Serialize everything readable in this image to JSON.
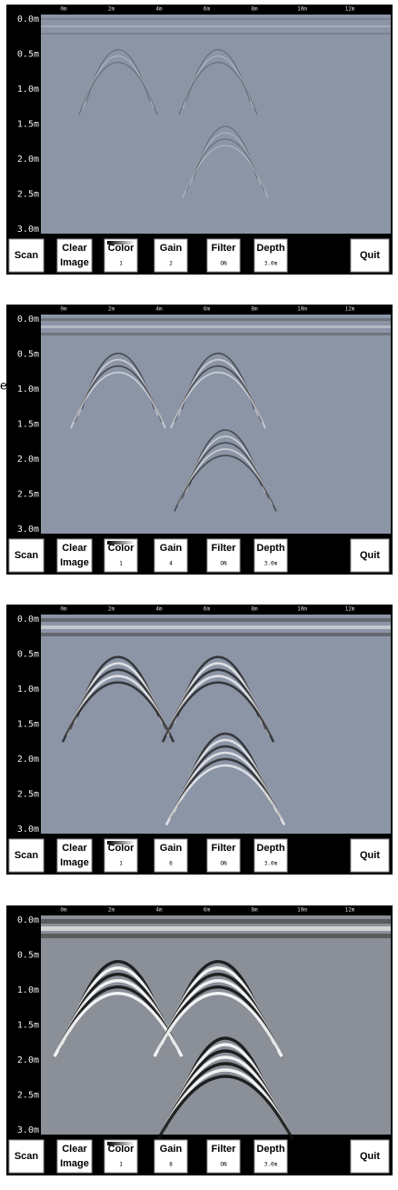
{
  "side_text": "e",
  "panels": [
    {
      "x_labels": [
        "0m",
        "2m",
        "4m",
        "6m",
        "8m",
        "10m",
        "12m"
      ],
      "depth_labels": [
        "0.0m",
        "0.5m",
        "1.0m",
        "1.5m",
        "2.0m",
        "2.5m",
        "3.0m"
      ],
      "buttons": {
        "scan": "Scan",
        "clear_1": "Clear",
        "clear_2": "Image",
        "color_label": "Color",
        "color_value": "1",
        "gain_label": "Gain",
        "gain_value": "2",
        "filter_label": "Filter",
        "filter_value": "ON",
        "depth_label": "Depth",
        "depth_value": "3.0m",
        "quit": "Quit"
      }
    },
    {
      "x_labels": [
        "0m",
        "2m",
        "4m",
        "6m",
        "8m",
        "10m",
        "12m"
      ],
      "depth_labels": [
        "0.0m",
        "0.5m",
        "1.0m",
        "1.5m",
        "2.0m",
        "2.5m",
        "3.0m"
      ],
      "buttons": {
        "scan": "Scan",
        "clear_1": "Clear",
        "clear_2": "Image",
        "color_label": "Color",
        "color_value": "1",
        "gain_label": "Gain",
        "gain_value": "4",
        "filter_label": "Filter",
        "filter_value": "ON",
        "depth_label": "Depth",
        "depth_value": "3.0m",
        "quit": "Quit"
      }
    },
    {
      "x_labels": [
        "0m",
        "2m",
        "4m",
        "6m",
        "8m",
        "10m",
        "12m"
      ],
      "depth_labels": [
        "0.0m",
        "0.5m",
        "1.0m",
        "1.5m",
        "2.0m",
        "2.5m",
        "3.0m"
      ],
      "buttons": {
        "scan": "Scan",
        "clear_1": "Clear",
        "clear_2": "Image",
        "color_label": "Color",
        "color_value": "1",
        "gain_label": "Gain",
        "gain_value": "6",
        "filter_label": "Filter",
        "filter_value": "ON",
        "depth_label": "Depth",
        "depth_value": "3.0m",
        "quit": "Quit"
      }
    },
    {
      "x_labels": [
        "0m",
        "2m",
        "4m",
        "6m",
        "8m",
        "10m",
        "12m"
      ],
      "depth_labels": [
        "0.0m",
        "0.5m",
        "1.0m",
        "1.5m",
        "2.0m",
        "2.5m",
        "3.0m"
      ],
      "buttons": {
        "scan": "Scan",
        "clear_1": "Clear",
        "clear_2": "Image",
        "color_label": "Color",
        "color_value": "1",
        "gain_label": "Gain",
        "gain_value": "8",
        "filter_label": "Filter",
        "filter_value": "ON",
        "depth_label": "Depth",
        "depth_value": "3.0m",
        "quit": "Quit"
      }
    }
  ]
}
